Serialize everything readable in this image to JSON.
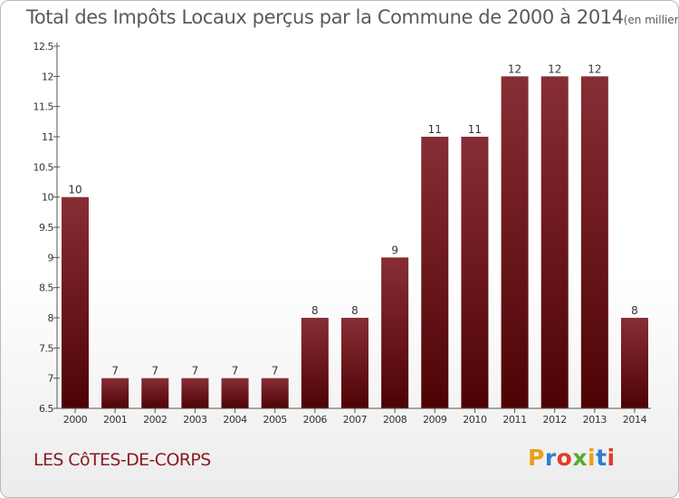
{
  "title": "Total des Impôts Locaux perçus par la Commune de 2000 à 2014",
  "unit_note": "(en milliers d'€)",
  "commune": "LES CôTES-DE-CORPS",
  "logo": {
    "letters": [
      "P",
      "r",
      "o",
      "x",
      "i",
      "t",
      "i"
    ],
    "colors": [
      "#e8a018",
      "#2f7ecf",
      "#e03c2a",
      "#5aa832",
      "#e8a018",
      "#2f7ecf",
      "#e03c2a"
    ]
  },
  "colors": {
    "bar_top": "#872e35",
    "bar_bottom": "#4e0204",
    "axis": "#555555",
    "label": "#333333"
  },
  "chart_data": {
    "type": "bar",
    "title": "Total des Impôts Locaux perçus par la Commune de 2000 à 2014",
    "xlabel": "",
    "ylabel": "",
    "categories": [
      "2000",
      "2001",
      "2002",
      "2003",
      "2004",
      "2005",
      "2006",
      "2007",
      "2008",
      "2009",
      "2010",
      "2011",
      "2012",
      "2013",
      "2014"
    ],
    "values": [
      10,
      7,
      7,
      7,
      7,
      7,
      8,
      8,
      9,
      11,
      11,
      12,
      12,
      12,
      8
    ],
    "ylim": [
      6.5,
      12.5
    ],
    "yticks": [
      "6.5",
      "7",
      "7.5",
      "8",
      "8.5",
      "9",
      "9.5",
      "10",
      "10.5",
      "11",
      "11.5",
      "12",
      "12.5"
    ],
    "grid": false
  }
}
